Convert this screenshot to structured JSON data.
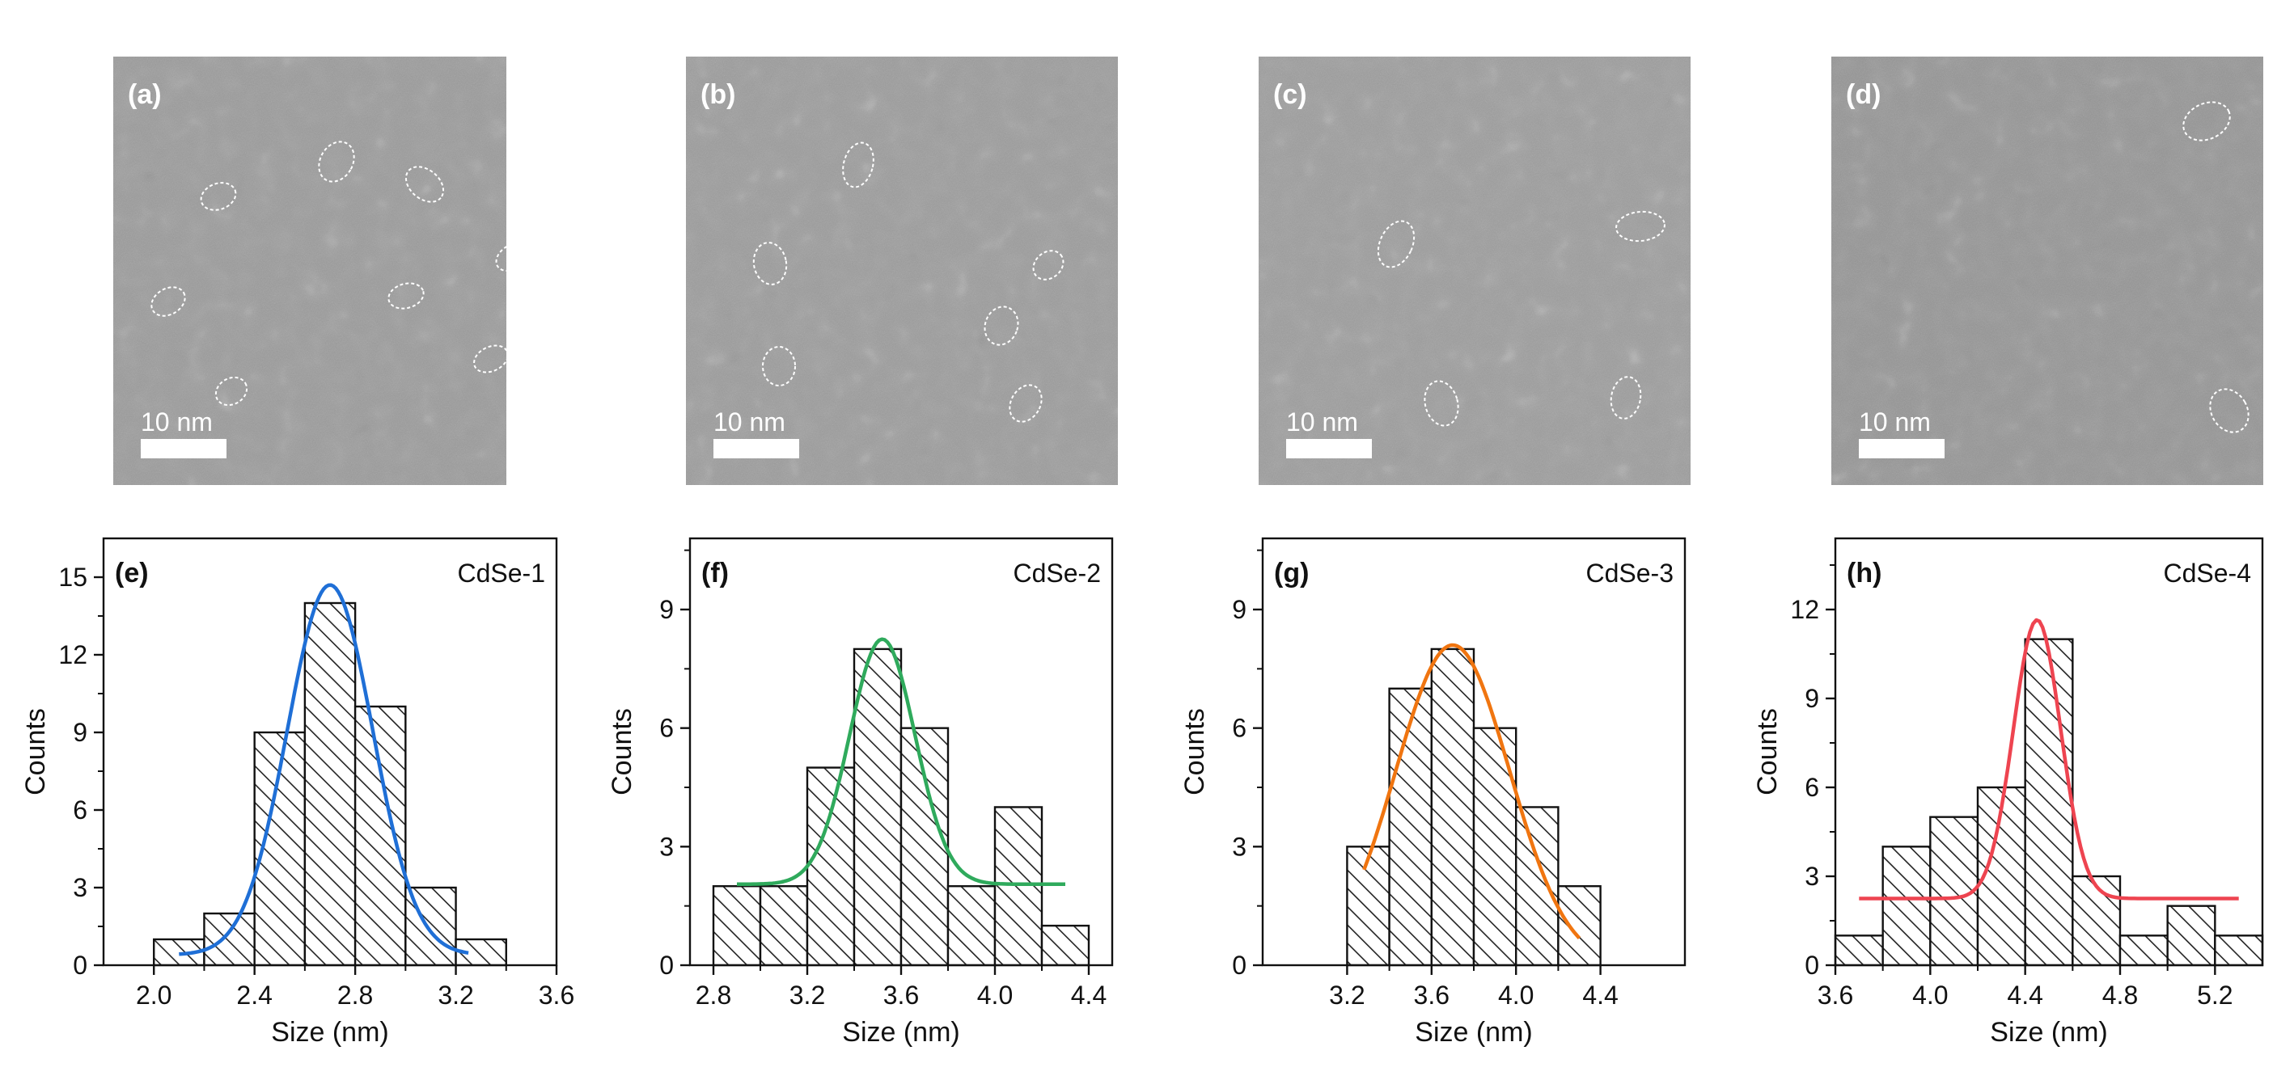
{
  "tem_panels": [
    {
      "label": "(a)",
      "scale_bar": "10 nm"
    },
    {
      "label": "(b)",
      "scale_bar": "10 nm"
    },
    {
      "label": "(c)",
      "scale_bar": "10 nm"
    },
    {
      "label": "(d)",
      "scale_bar": "10 nm"
    }
  ],
  "colors": {
    "fit_e": "#1f6fd6",
    "fit_f": "#2faa5c",
    "fit_g": "#f07510",
    "fit_h": "#ee4450",
    "tem_background": "#9a9a9a",
    "bar_hatch": "#222222"
  },
  "chart_data": [
    {
      "type": "bar",
      "panel_label": "(e)",
      "sample": "CdSe-1",
      "xlabel": "Size (nm)",
      "ylabel": "Counts",
      "xlim": [
        1.8,
        3.6
      ],
      "ylim": [
        0,
        16.5
      ],
      "xticks": [
        2.0,
        2.4,
        2.8,
        3.2,
        3.6
      ],
      "xticklabels": [
        "2.0",
        "2.4",
        "2.8",
        "3.2",
        "3.6"
      ],
      "yticks": [
        0,
        3,
        6,
        9,
        12,
        15
      ],
      "yticklabels": [
        "0",
        "3",
        "6",
        "9",
        "12",
        "15"
      ],
      "bin_width": 0.2,
      "bins": [
        {
          "x0": 2.0,
          "x1": 2.2,
          "count": 1
        },
        {
          "x0": 2.2,
          "x1": 2.4,
          "count": 2
        },
        {
          "x0": 2.4,
          "x1": 2.6,
          "count": 9
        },
        {
          "x0": 2.6,
          "x1": 2.8,
          "count": 14
        },
        {
          "x0": 2.8,
          "x1": 3.0,
          "count": 10
        },
        {
          "x0": 3.0,
          "x1": 3.2,
          "count": 3
        },
        {
          "x0": 3.2,
          "x1": 3.4,
          "count": 1
        }
      ],
      "fit": {
        "type": "gaussian",
        "center": 2.7,
        "amplitude": 14.3,
        "sigma": 0.17,
        "baseline": 0.4,
        "x_range": [
          2.1,
          3.25
        ]
      }
    },
    {
      "type": "bar",
      "panel_label": "(f)",
      "sample": "CdSe-2",
      "xlabel": "Size (nm)",
      "ylabel": "Counts",
      "xlim": [
        2.7,
        4.5
      ],
      "ylim": [
        0,
        10.8
      ],
      "xticks": [
        2.8,
        3.2,
        3.6,
        4.0,
        4.4
      ],
      "xticklabels": [
        "2.8",
        "3.2",
        "3.6",
        "4.0",
        "4.4"
      ],
      "yticks": [
        0,
        3,
        6,
        9
      ],
      "yticklabels": [
        "0",
        "3",
        "6",
        "9"
      ],
      "bin_width": 0.2,
      "bins": [
        {
          "x0": 2.8,
          "x1": 3.0,
          "count": 2
        },
        {
          "x0": 3.0,
          "x1": 3.2,
          "count": 2
        },
        {
          "x0": 3.2,
          "x1": 3.4,
          "count": 5
        },
        {
          "x0": 3.4,
          "x1": 3.6,
          "count": 8
        },
        {
          "x0": 3.6,
          "x1": 3.8,
          "count": 6
        },
        {
          "x0": 3.8,
          "x1": 4.0,
          "count": 2
        },
        {
          "x0": 4.0,
          "x1": 4.2,
          "count": 4
        },
        {
          "x0": 4.2,
          "x1": 4.4,
          "count": 1
        }
      ],
      "fit": {
        "type": "gaussian",
        "center": 3.52,
        "amplitude": 6.2,
        "sigma": 0.14,
        "baseline": 2.05,
        "x_range": [
          2.9,
          4.3
        ]
      }
    },
    {
      "type": "bar",
      "panel_label": "(g)",
      "sample": "CdSe-3",
      "xlabel": "Size (nm)",
      "ylabel": "Counts",
      "xlim": [
        2.8,
        4.8
      ],
      "ylim": [
        0,
        10.8
      ],
      "xticks": [
        3.2,
        3.6,
        4.0,
        4.4
      ],
      "xticklabels": [
        "3.2",
        "3.6",
        "4.0",
        "4.4"
      ],
      "yticks": [
        0,
        3,
        6,
        9
      ],
      "yticklabels": [
        "0",
        "3",
        "6",
        "9"
      ],
      "bin_width": 0.2,
      "bins": [
        {
          "x0": 3.2,
          "x1": 3.4,
          "count": 3
        },
        {
          "x0": 3.4,
          "x1": 3.6,
          "count": 7
        },
        {
          "x0": 3.6,
          "x1": 3.8,
          "count": 8
        },
        {
          "x0": 3.8,
          "x1": 4.0,
          "count": 6
        },
        {
          "x0": 4.0,
          "x1": 4.2,
          "count": 4
        },
        {
          "x0": 4.2,
          "x1": 4.4,
          "count": 2
        }
      ],
      "fit": {
        "type": "gaussian",
        "center": 3.7,
        "amplitude": 8.1,
        "sigma": 0.27,
        "baseline": 0,
        "x_range": [
          3.28,
          4.3
        ]
      }
    },
    {
      "type": "bar",
      "panel_label": "(h)",
      "sample": "CdSe-4",
      "xlabel": "Size (nm)",
      "ylabel": "Counts",
      "xlim": [
        3.6,
        5.4
      ],
      "ylim": [
        0,
        14.4
      ],
      "xticks": [
        3.6,
        4.0,
        4.4,
        4.8,
        5.2
      ],
      "xticklabels": [
        "3.6",
        "4.0",
        "4.4",
        "4.8",
        "5.2"
      ],
      "yticks": [
        0,
        3,
        6,
        9,
        12
      ],
      "yticklabels": [
        "0",
        "3",
        "6",
        "9",
        "12"
      ],
      "bin_width": 0.2,
      "bins": [
        {
          "x0": 3.6,
          "x1": 3.8,
          "count": 1
        },
        {
          "x0": 3.8,
          "x1": 4.0,
          "count": 4
        },
        {
          "x0": 4.0,
          "x1": 4.2,
          "count": 5
        },
        {
          "x0": 4.2,
          "x1": 4.4,
          "count": 6
        },
        {
          "x0": 4.4,
          "x1": 4.6,
          "count": 11
        },
        {
          "x0": 4.6,
          "x1": 4.8,
          "count": 3
        },
        {
          "x0": 4.8,
          "x1": 5.0,
          "count": 1
        },
        {
          "x0": 5.0,
          "x1": 5.2,
          "count": 2
        },
        {
          "x0": 5.2,
          "x1": 5.4,
          "count": 1
        }
      ],
      "fit": {
        "type": "gaussian",
        "center": 4.45,
        "amplitude": 9.4,
        "sigma": 0.1,
        "baseline": 2.25,
        "x_range": [
          3.7,
          5.3
        ]
      }
    }
  ]
}
